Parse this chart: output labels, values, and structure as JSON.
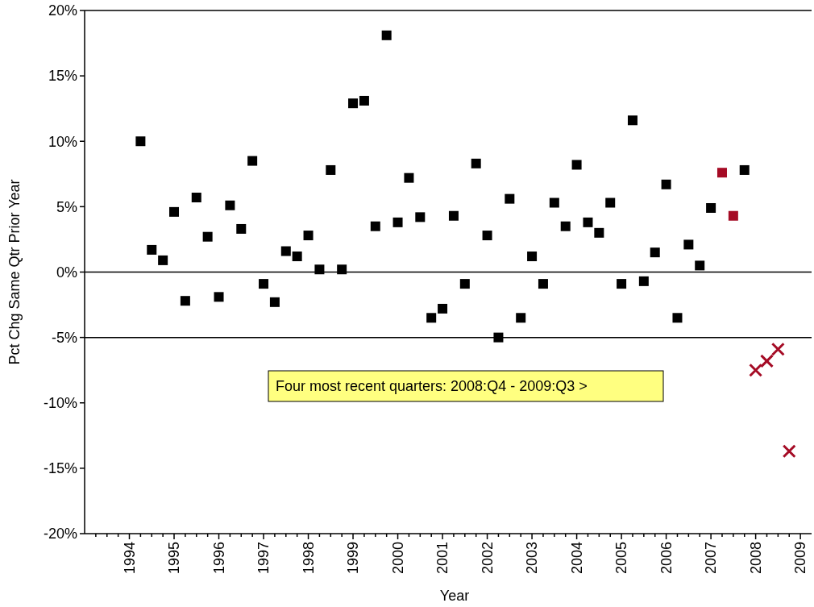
{
  "chart_data": {
    "type": "scatter",
    "xlabel": "Year",
    "ylabel": "Pct Chg Same Qtr Prior Year",
    "xlim": [
      1993,
      2009.25
    ],
    "ylim": [
      -20,
      20
    ],
    "xticks": [
      {
        "value": 1993.25,
        "label": null
      },
      {
        "value": 1993.5,
        "label": null
      },
      {
        "value": 1993.75,
        "label": null
      },
      1994,
      {
        "value": 1994.25,
        "label": null
      },
      {
        "value": 1994.5,
        "label": null
      },
      {
        "value": 1994.75,
        "label": null
      },
      1995,
      {
        "value": 1995.25,
        "label": null
      },
      {
        "value": 1995.5,
        "label": null
      },
      {
        "value": 1995.75,
        "label": null
      },
      1996,
      {
        "value": 1996.25,
        "label": null
      },
      {
        "value": 1996.5,
        "label": null
      },
      {
        "value": 1996.75,
        "label": null
      },
      1997,
      {
        "value": 1997.25,
        "label": null
      },
      {
        "value": 1997.5,
        "label": null
      },
      {
        "value": 1997.75,
        "label": null
      },
      1998,
      {
        "value": 1998.25,
        "label": null
      },
      {
        "value": 1998.5,
        "label": null
      },
      {
        "value": 1998.75,
        "label": null
      },
      1999,
      {
        "value": 1999.25,
        "label": null
      },
      {
        "value": 1999.5,
        "label": null
      },
      {
        "value": 1999.75,
        "label": null
      },
      2000,
      {
        "value": 2000.25,
        "label": null
      },
      {
        "value": 2000.5,
        "label": null
      },
      {
        "value": 2000.75,
        "label": null
      },
      2001,
      {
        "value": 2001.25,
        "label": null
      },
      {
        "value": 2001.5,
        "label": null
      },
      {
        "value": 2001.75,
        "label": null
      },
      2002,
      {
        "value": 2002.25,
        "label": null
      },
      {
        "value": 2002.5,
        "label": null
      },
      {
        "value": 2002.75,
        "label": null
      },
      2003,
      {
        "value": 2003.25,
        "label": null
      },
      {
        "value": 2003.5,
        "label": null
      },
      {
        "value": 2003.75,
        "label": null
      },
      2004,
      {
        "value": 2004.25,
        "label": null
      },
      {
        "value": 2004.5,
        "label": null
      },
      {
        "value": 2004.75,
        "label": null
      },
      2005,
      {
        "value": 2005.25,
        "label": null
      },
      {
        "value": 2005.5,
        "label": null
      },
      {
        "value": 2005.75,
        "label": null
      },
      2006,
      {
        "value": 2006.25,
        "label": null
      },
      {
        "value": 2006.5,
        "label": null
      },
      {
        "value": 2006.75,
        "label": null
      },
      2007,
      {
        "value": 2007.25,
        "label": null
      },
      {
        "value": 2007.5,
        "label": null
      },
      {
        "value": 2007.75,
        "label": null
      },
      2008,
      {
        "value": 2008.25,
        "label": null
      },
      {
        "value": 2008.5,
        "label": null
      },
      {
        "value": 2008.75,
        "label": null
      },
      2009
    ],
    "yticks": [
      {
        "value": -20,
        "label": "-20%"
      },
      {
        "value": -15,
        "label": "-15%"
      },
      {
        "value": -10,
        "label": "-10%"
      },
      {
        "value": -5,
        "label": "-5%"
      },
      {
        "value": 0,
        "label": "0%"
      },
      {
        "value": 5,
        "label": "5%"
      },
      {
        "value": 10,
        "label": "10%"
      },
      {
        "value": 15,
        "label": "15%"
      },
      {
        "value": 20,
        "label": "20%"
      }
    ],
    "grid": false,
    "ref_lines": [
      {
        "axis": "y",
        "value": 0,
        "color": "#000000"
      },
      {
        "axis": "y",
        "value": -5,
        "color": "#000000"
      }
    ],
    "annotations": [
      "Four most recent quarters: 2008:Q4 - 2009:Q3 >"
    ],
    "series": [
      {
        "color": "#000000",
        "marker": "square",
        "x": [
          1994.25,
          1994.5,
          1994.75,
          1995,
          1995.25,
          1995.5,
          1995.75,
          1996,
          1996.25,
          1996.5,
          1996.75,
          1997,
          1997.25,
          1997.5,
          1997.75,
          1998,
          1998.25,
          1998.5,
          1998.75,
          1999,
          1999.25,
          1999.5,
          1999.75,
          2000,
          2000.25,
          2000.5,
          2000.75,
          2001,
          2001.25,
          2001.5,
          2001.75,
          2002,
          2002.25,
          2002.5,
          2002.75,
          2003,
          2003.25,
          2003.5,
          2003.75,
          2004,
          2004.25,
          2004.5,
          2004.75,
          2005,
          2005.25,
          2005.5,
          2005.75,
          2006,
          2006.25,
          2006.5,
          2006.75,
          2007,
          2007.75
        ],
        "values": [
          10.0,
          1.7,
          0.9,
          4.6,
          -2.2,
          5.7,
          2.7,
          -1.9,
          5.1,
          3.3,
          8.5,
          -0.9,
          -2.3,
          1.6,
          1.2,
          2.8,
          0.2,
          7.8,
          0.2,
          12.9,
          13.1,
          3.5,
          18.1,
          3.8,
          7.2,
          4.2,
          -3.5,
          -2.8,
          4.3,
          -0.9,
          8.3,
          2.8,
          -5.0,
          5.6,
          -3.5,
          1.2,
          -0.9,
          5.3,
          3.5,
          8.2,
          3.8,
          3.0,
          5.3,
          -0.9,
          11.6,
          -0.7,
          1.5,
          6.7,
          -3.5,
          2.1,
          0.5,
          4.9,
          7.8
        ]
      },
      {
        "color": "#a50b25",
        "marker": "square",
        "x": [
          2007.25,
          2007.5
        ],
        "values": [
          7.6,
          4.3
        ]
      },
      {
        "color": "#a50b25",
        "marker": "cross",
        "x": [
          2008,
          2008.25,
          2008.5,
          2008.75
        ],
        "values": [
          -7.5,
          -6.8,
          -5.9,
          -13.7
        ]
      }
    ]
  }
}
